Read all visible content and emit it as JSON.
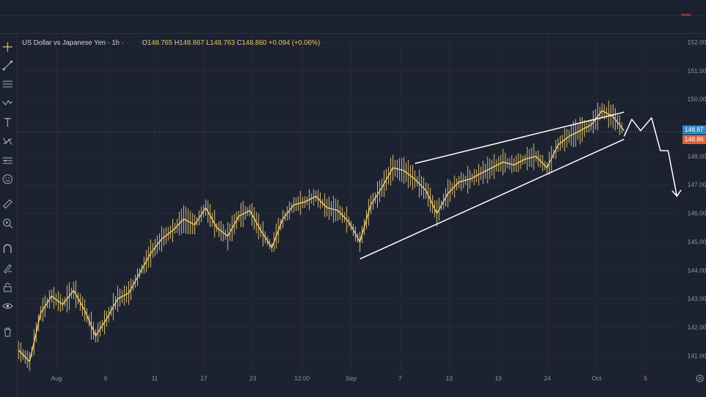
{
  "legend": {
    "title": "US Dollar vs Japanese Yen · 1h ·",
    "open_label": "O",
    "open": "148.765",
    "high_label": "H",
    "high": "148.867",
    "low_label": "L",
    "low": "148.763",
    "close_label": "C",
    "close": "148.860",
    "change": "+0.094 (+0.06%)"
  },
  "price_tags": {
    "upper": "148.87",
    "lower": "148.86"
  },
  "toolbar": {
    "icons": [
      "crosshair-icon",
      "trend-line-icon",
      "horizontal-lines-icon",
      "zigzag-pattern-icon",
      "text-icon",
      "node-pattern-icon",
      "forecast-icon",
      "emoji-icon",
      "ruler-icon",
      "zoom-icon",
      "magnet-icon",
      "lock-drawing-icon",
      "lock-icon",
      "eye-icon",
      "trash-icon"
    ]
  },
  "colors": {
    "background": "#1d2230",
    "candles": "#e4c777",
    "drawings": "#ffffff",
    "tag_upper": "#2f87c9",
    "tag_lower": "#e0623b"
  },
  "chart_data": {
    "type": "line",
    "title": "US Dollar vs Japanese Yen · 1h ·",
    "x_tick_labels": [
      "Aug",
      "6",
      "11",
      "17",
      "23",
      "12:00",
      "Sep",
      "7",
      "13",
      "19",
      "24",
      "Oct",
      "5"
    ],
    "y_tick_labels": [
      "141.00",
      "142.00",
      "143.00",
      "144.00",
      "145.00",
      "146.00",
      "147.00",
      "148.00",
      "149.00",
      "150.00",
      "151.00",
      "152.00"
    ],
    "ylim": [
      140.5,
      152.3
    ],
    "xlim": [
      0,
      60
    ],
    "grid": true,
    "current_price": 148.86,
    "series": [
      {
        "values_x": [
          0,
          1,
          2,
          3,
          4,
          5,
          6,
          7,
          8,
          9,
          10,
          11,
          12,
          13,
          14,
          15,
          16,
          17,
          18,
          19,
          20,
          21,
          22,
          23,
          24,
          25,
          26,
          27,
          28,
          29,
          30,
          31,
          32,
          33,
          34,
          35,
          36,
          37,
          38,
          39,
          40,
          41,
          42,
          43,
          44,
          45,
          46,
          47,
          48,
          49,
          50,
          51,
          52,
          53,
          54,
          55
        ],
        "values_y": [
          141.2,
          140.8,
          142.5,
          143.1,
          142.8,
          143.3,
          142.6,
          141.7,
          142.3,
          143.0,
          143.2,
          143.9,
          144.6,
          145.1,
          145.4,
          145.8,
          145.6,
          146.2,
          145.5,
          145.2,
          145.9,
          146.1,
          145.4,
          144.8,
          145.8,
          146.3,
          146.4,
          146.6,
          146.2,
          146.1,
          145.7,
          145.0,
          146.3,
          146.9,
          147.6,
          147.5,
          147.2,
          146.8,
          146.0,
          146.7,
          147.1,
          147.2,
          147.4,
          147.6,
          147.8,
          147.7,
          147.9,
          148.0,
          147.6,
          148.4,
          148.7,
          148.9,
          149.1,
          149.6,
          149.4,
          148.9
        ]
      }
    ],
    "annotations": {
      "wedge_upper": [
        [
          36,
          147.75
        ],
        [
          55,
          149.55
        ]
      ],
      "wedge_lower": [
        [
          31,
          144.4
        ],
        [
          55,
          148.6
        ]
      ],
      "projection": [
        [
          55,
          148.7
        ],
        [
          55.7,
          149.3
        ],
        [
          56.5,
          148.9
        ],
        [
          57.5,
          149.35
        ],
        [
          58.3,
          148.2
        ],
        [
          59,
          148.2
        ],
        [
          59.8,
          146.6
        ]
      ]
    }
  }
}
